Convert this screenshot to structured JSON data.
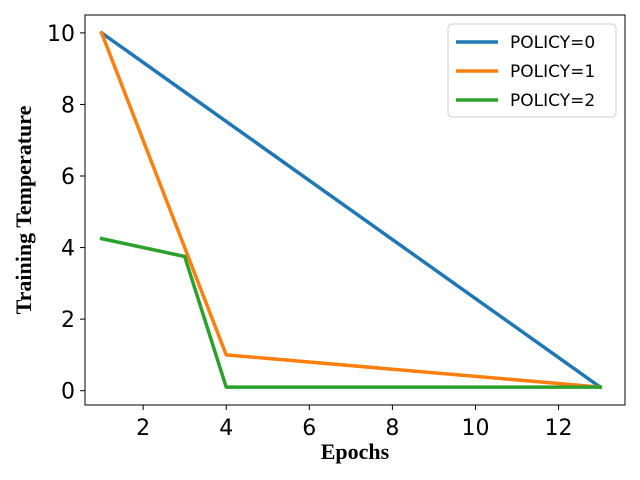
{
  "chart_data": {
    "type": "line",
    "title": "",
    "xlabel": "Epochs",
    "ylabel": "Training Temperature",
    "xlim": [
      0.6,
      13.6
    ],
    "ylim": [
      -0.4,
      10.5
    ],
    "xticks": [
      2,
      4,
      6,
      8,
      10,
      12
    ],
    "yticks": [
      0,
      2,
      4,
      6,
      8,
      10
    ],
    "grid": false,
    "legend_position": "top-right",
    "series": [
      {
        "name": "POLICY=0",
        "color": "#1f77b4",
        "x": [
          1,
          13
        ],
        "y": [
          10,
          0.1
        ]
      },
      {
        "name": "POLICY=1",
        "color": "#ff7f0e",
        "x": [
          1,
          4,
          13
        ],
        "y": [
          10,
          1,
          0.1
        ]
      },
      {
        "name": "POLICY=2",
        "color": "#2ca02c",
        "x": [
          1,
          3,
          4,
          13
        ],
        "y": [
          4.25,
          3.75,
          0.1,
          0.1
        ]
      }
    ]
  }
}
